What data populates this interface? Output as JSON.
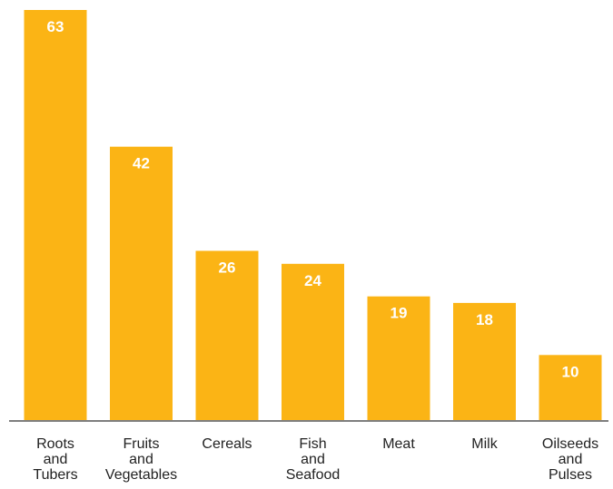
{
  "chart_data": {
    "type": "bar",
    "categories": [
      [
        "Roots",
        "and",
        "Tubers"
      ],
      [
        "Fruits",
        "and",
        "Vegetables"
      ],
      [
        "Cereals"
      ],
      [
        "Fish",
        "and",
        "Seafood"
      ],
      [
        "Meat"
      ],
      [
        "Milk"
      ],
      [
        "Oilseeds",
        "and",
        "Pulses"
      ]
    ],
    "values": [
      63,
      42,
      26,
      24,
      19,
      18,
      10
    ],
    "value_labels": [
      "63",
      "42",
      "26",
      "24",
      "19",
      "18",
      "10"
    ],
    "ylim": [
      0,
      63
    ],
    "title": "",
    "xlabel": "",
    "ylabel": "",
    "grid": false,
    "legend": "none",
    "bar_color": "#fbb415",
    "value_label_color": "#ffffff"
  }
}
